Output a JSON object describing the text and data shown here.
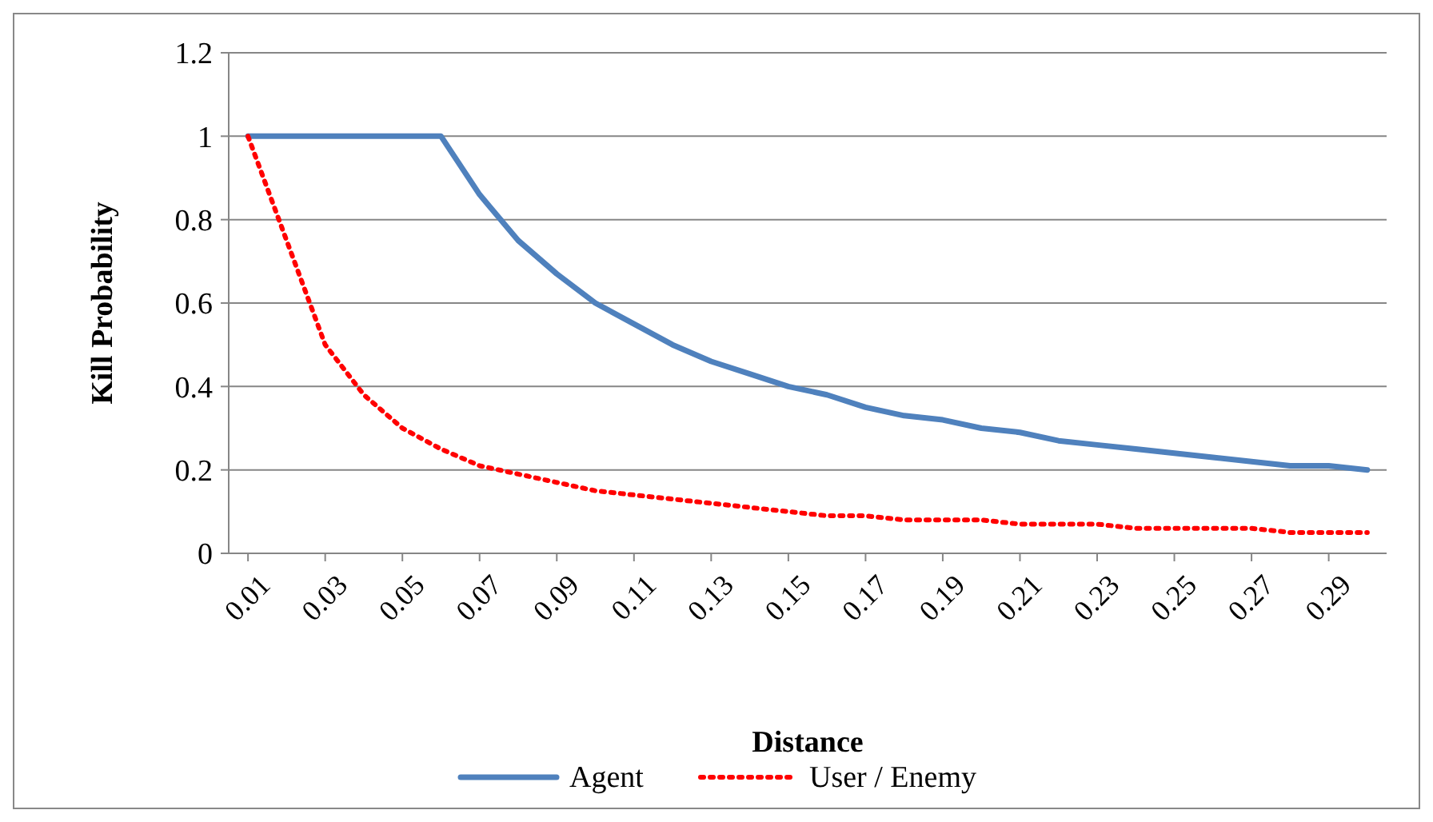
{
  "chart_data": {
    "type": "line",
    "xlabel": "Distance",
    "ylabel": "Kill Probability",
    "x": [
      0.01,
      0.02,
      0.03,
      0.04,
      0.05,
      0.06,
      0.07,
      0.08,
      0.09,
      0.1,
      0.11,
      0.12,
      0.13,
      0.14,
      0.15,
      0.16,
      0.17,
      0.18,
      0.19,
      0.2,
      0.21,
      0.22,
      0.23,
      0.24,
      0.25,
      0.26,
      0.27,
      0.28,
      0.29,
      0.3
    ],
    "series": [
      {
        "name": "Agent",
        "color": "#4f81bd",
        "line_style": "solid",
        "values": [
          1,
          1,
          1,
          1,
          1,
          1,
          0.86,
          0.75,
          0.67,
          0.6,
          0.55,
          0.5,
          0.46,
          0.43,
          0.4,
          0.38,
          0.35,
          0.33,
          0.32,
          0.3,
          0.29,
          0.27,
          0.26,
          0.25,
          0.24,
          0.23,
          0.22,
          0.21,
          0.21,
          0.2
        ]
      },
      {
        "name": "User / Enemy",
        "color": "#ff0000",
        "line_style": "dotted",
        "values": [
          1,
          0.75,
          0.5,
          0.38,
          0.3,
          0.25,
          0.21,
          0.19,
          0.17,
          0.15,
          0.14,
          0.13,
          0.12,
          0.11,
          0.1,
          0.09,
          0.09,
          0.08,
          0.08,
          0.08,
          0.07,
          0.07,
          0.07,
          0.06,
          0.06,
          0.06,
          0.06,
          0.05,
          0.05,
          0.05
        ]
      }
    ],
    "xlim": [
      0.005,
      0.305
    ],
    "xticks": [
      {
        "value": 0.01,
        "label": "0.01"
      },
      {
        "value": 0.03,
        "label": "0.03"
      },
      {
        "value": 0.05,
        "label": "0.05"
      },
      {
        "value": 0.07,
        "label": "0.07"
      },
      {
        "value": 0.09,
        "label": "0.09"
      },
      {
        "value": 0.11,
        "label": "0.11"
      },
      {
        "value": 0.13,
        "label": "0.13"
      },
      {
        "value": 0.15,
        "label": "0.15"
      },
      {
        "value": 0.17,
        "label": "0.17"
      },
      {
        "value": 0.19,
        "label": "0.19"
      },
      {
        "value": 0.21,
        "label": "0.21"
      },
      {
        "value": 0.23,
        "label": "0.23"
      },
      {
        "value": 0.25,
        "label": "0.25"
      },
      {
        "value": 0.27,
        "label": "0.27"
      },
      {
        "value": 0.29,
        "label": "0.29"
      }
    ],
    "ylim": [
      0,
      1.2
    ],
    "yticks": [
      0,
      0.2,
      0.4,
      0.6,
      0.8,
      1,
      1.2
    ],
    "grid": "y",
    "legend": "bottom",
    "marker": "none"
  }
}
